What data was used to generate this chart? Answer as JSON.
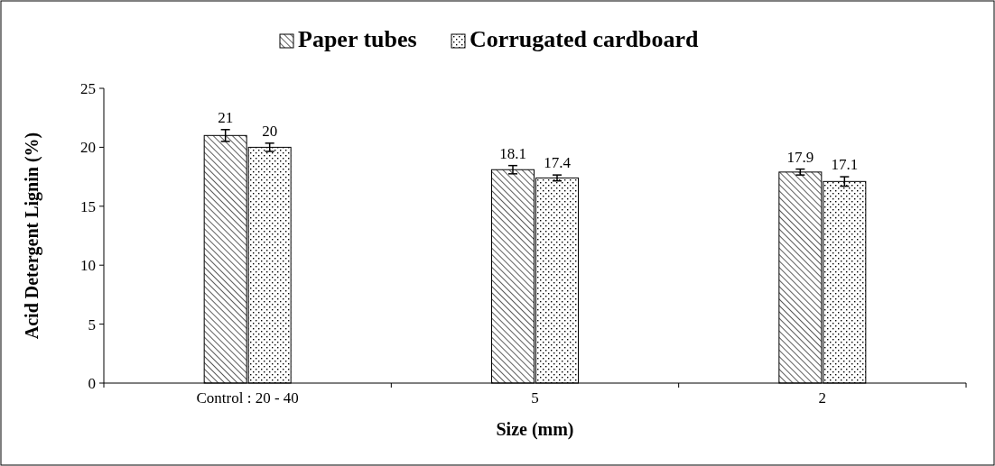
{
  "chart_data": {
    "type": "bar",
    "xlabel": "Size (mm)",
    "ylabel": "Acid Detergent Lignin (%)",
    "categories": [
      "Control : 20 - 40",
      "5",
      "2"
    ],
    "series": [
      {
        "name": "Paper tubes",
        "color": "#000000",
        "values": [
          21,
          18.1,
          17.9
        ],
        "errors": [
          0.5,
          0.35,
          0.25
        ]
      },
      {
        "name": "Corrugated cardboard",
        "color": "#000000",
        "values": [
          20,
          17.4,
          17.1
        ],
        "errors": [
          0.35,
          0.25,
          0.4
        ]
      }
    ],
    "ylim": [
      0,
      25
    ],
    "yticks": [
      0,
      5,
      10,
      15,
      20,
      25
    ],
    "grid": false,
    "legend": "top",
    "data_labels": true
  }
}
